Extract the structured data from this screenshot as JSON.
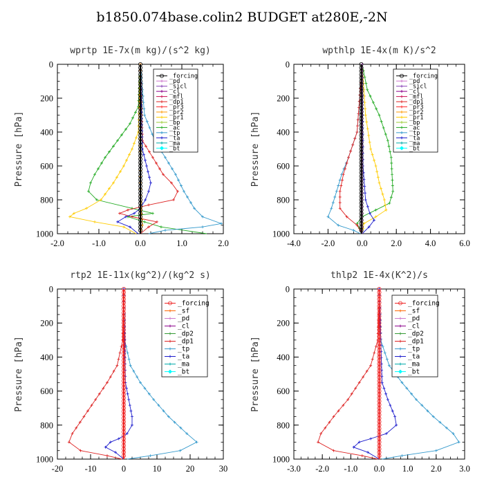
{
  "title": "b1850.074base.colin2  BUDGET at280E,-2N",
  "colors": {
    "_forcing": "#000000",
    "_pd": "#cc77cc",
    "_sicl": "#8a44b8",
    "_cl": "#8b008b",
    "_mfl": "#cc1155",
    "_dp1": "#dd2222",
    "_pr3": "#ff2a2a",
    "_pr2": "#ff9900",
    "_pr1": "#ffcc00",
    "_bp": "#99cc33",
    "_ac": "#22aa22",
    "_tp": "#3399cc",
    "_ta": "#1a1acc",
    "_ma": "#00aaaa",
    "_bt": "#00ffff",
    "_sf": "#ff6600",
    "_dp2": "#339933",
    "_forcing_red": "#ee2222"
  },
  "chart_data": [
    {
      "type": "line",
      "title": "wprtp  1E-7x(m kg)/(s^2 kg)",
      "ylabel": "Pressure [hPa]",
      "xlim": [
        -2.0,
        2.0
      ],
      "ylim": [
        1000,
        0
      ],
      "xticks": [
        "-2.0",
        "-1.0",
        "0.0",
        "1.0",
        "2.0"
      ],
      "xtick_values": [
        -2,
        -1,
        0,
        1,
        2
      ],
      "yticks": [
        "0",
        "200",
        "400",
        "600",
        "800",
        "1000"
      ],
      "ytick_values": [
        0,
        200,
        400,
        600,
        800,
        1000
      ],
      "legend": [
        "_forcing",
        "_pd",
        "_sicl",
        "_cl",
        "_mfl",
        "_dp1",
        "_pr3",
        "_pr2",
        "_pr1",
        "_bp",
        "_ac",
        "_tp",
        "_ta",
        "_ma",
        "_bt"
      ],
      "series": [
        {
          "name": "_ac",
          "p": [
            0,
            250,
            350,
            450,
            550,
            650,
            700,
            750,
            800,
            850,
            880,
            900,
            930,
            960,
            1000
          ],
          "x": [
            0.0,
            -0.05,
            -0.25,
            -0.55,
            -0.85,
            -1.1,
            -1.2,
            -1.25,
            -1.05,
            -0.2,
            0.3,
            -0.3,
            0.1,
            0.5,
            1.6
          ]
        },
        {
          "name": "_pr1",
          "p": [
            0,
            400,
            500,
            600,
            700,
            800,
            850,
            880,
            900,
            930,
            960,
            1000
          ],
          "x": [
            0.0,
            -0.05,
            -0.2,
            -0.4,
            -0.65,
            -0.95,
            -1.3,
            -1.6,
            -1.7,
            -1.1,
            -0.4,
            -0.1
          ]
        },
        {
          "name": "_tp",
          "p": [
            0,
            300,
            450,
            550,
            650,
            750,
            850,
            900,
            940,
            960,
            980,
            1000
          ],
          "x": [
            0.0,
            0.1,
            0.35,
            0.6,
            0.85,
            1.05,
            1.3,
            1.5,
            1.95,
            1.5,
            0.6,
            0.2
          ]
        },
        {
          "name": "_dp1",
          "p": [
            0,
            450,
            550,
            650,
            700,
            750,
            800,
            830,
            860,
            880,
            900,
            930,
            960,
            1000
          ],
          "x": [
            0.0,
            0.05,
            0.3,
            0.55,
            0.75,
            0.9,
            0.8,
            0.2,
            -0.3,
            -0.5,
            -0.2,
            0.4,
            0.2,
            0.0
          ]
        },
        {
          "name": "_ta",
          "p": [
            0,
            500,
            600,
            700,
            750,
            800,
            850,
            880,
            900,
            930,
            960,
            1000
          ],
          "x": [
            0.0,
            0.05,
            0.15,
            0.25,
            0.2,
            0.12,
            0.0,
            -0.15,
            -0.35,
            -0.55,
            -0.25,
            -0.05
          ]
        },
        {
          "name": "_pr2",
          "p": [
            0,
            700,
            850,
            950,
            1000
          ],
          "x": [
            0.0,
            0.0,
            0.02,
            0.05,
            0.0
          ]
        },
        {
          "name": "_forcing",
          "p": [
            0,
            200,
            400,
            600,
            800,
            1000
          ],
          "x": [
            0.0,
            0.0,
            0.0,
            0.0,
            0.0,
            0.0
          ]
        }
      ]
    },
    {
      "type": "line",
      "title": "wpthlp  1E-4x(m K)/s^2",
      "ylabel": "Pressure [hPa]",
      "xlim": [
        -4.0,
        6.0
      ],
      "ylim": [
        1000,
        0
      ],
      "xticks": [
        "-4.0",
        "-2.0",
        "0.0",
        "2.0",
        "4.0",
        "6.0"
      ],
      "xtick_values": [
        -4,
        -2,
        0,
        2,
        4,
        6
      ],
      "yticks": [
        "0",
        "200",
        "400",
        "600",
        "800",
        "1000"
      ],
      "ytick_values": [
        0,
        200,
        400,
        600,
        800,
        1000
      ],
      "legend": [
        "_forcing",
        "_pd",
        "_sicl",
        "_cl",
        "_mfl",
        "_dp1",
        "_pr3",
        "_pr2",
        "_pr1",
        "_bp",
        "_ac",
        "_tp",
        "_ta",
        "_ma",
        "_bt"
      ],
      "series": [
        {
          "name": "_ac",
          "p": [
            0,
            150,
            300,
            450,
            550,
            650,
            750,
            820,
            860,
            900,
            940,
            1000
          ],
          "x": [
            0.0,
            0.3,
            1.0,
            1.5,
            1.7,
            1.75,
            1.8,
            1.6,
            0.8,
            0.0,
            -0.3,
            0.0
          ]
        },
        {
          "name": "_pr1",
          "p": [
            0,
            300,
            500,
            600,
            700,
            800,
            860,
            900,
            940,
            1000
          ],
          "x": [
            0.0,
            0.2,
            0.5,
            0.8,
            1.0,
            1.3,
            1.4,
            0.8,
            0.1,
            0.0
          ]
        },
        {
          "name": "_tp",
          "p": [
            0,
            400,
            550,
            650,
            750,
            850,
            900,
            950,
            980,
            1000
          ],
          "x": [
            0.0,
            -0.3,
            -0.8,
            -1.2,
            -1.5,
            -1.8,
            -2.0,
            -1.4,
            -0.5,
            -0.1
          ]
        },
        {
          "name": "_dp1",
          "p": [
            0,
            400,
            550,
            650,
            750,
            850,
            900,
            950,
            1000
          ],
          "x": [
            0.0,
            -0.3,
            -0.8,
            -1.1,
            -1.3,
            -1.3,
            -0.9,
            -0.3,
            0.0
          ]
        },
        {
          "name": "_ta",
          "p": [
            0,
            600,
            800,
            880,
            920,
            960,
            1000
          ],
          "x": [
            0.0,
            0.05,
            0.2,
            0.45,
            0.7,
            0.4,
            0.0
          ]
        },
        {
          "name": "_pd",
          "p": [
            0,
            200,
            400,
            600,
            800,
            1000
          ],
          "x": [
            0.0,
            0.0,
            0.0,
            0.0,
            0.0,
            0.0
          ]
        },
        {
          "name": "_forcing",
          "p": [
            0,
            200,
            400,
            600,
            800,
            1000
          ],
          "x": [
            -0.05,
            -0.05,
            -0.05,
            -0.05,
            -0.05,
            -0.05
          ]
        }
      ]
    },
    {
      "type": "line",
      "title": "rtp2  1E-11x(kg^2)/(kg^2 s)",
      "ylabel": "Pressure [hPa]",
      "xlim": [
        -20,
        30
      ],
      "ylim": [
        1000,
        0
      ],
      "xticks": [
        "-20",
        "-10",
        "0",
        "10",
        "20",
        "30"
      ],
      "xtick_values": [
        -20,
        -10,
        0,
        10,
        20,
        30
      ],
      "yticks": [
        "0",
        "200",
        "400",
        "600",
        "800",
        "1000"
      ],
      "ytick_values": [
        0,
        200,
        400,
        600,
        800,
        1000
      ],
      "legend": [
        "_forcing",
        "_sf",
        "_pd",
        "_cl",
        "_dp2",
        "_dp1",
        "_tp",
        "_ta",
        "_ma",
        "_bt"
      ],
      "series": [
        {
          "name": "_dp1",
          "p": [
            0,
            300,
            450,
            550,
            650,
            750,
            850,
            900,
            950,
            980,
            1000
          ],
          "x": [
            0.0,
            -0.3,
            -2.0,
            -5.0,
            -8.5,
            -12.0,
            -15.5,
            -16.5,
            -13.0,
            -5.0,
            -0.5
          ]
        },
        {
          "name": "_tp",
          "p": [
            0,
            300,
            450,
            550,
            650,
            750,
            850,
            900,
            950,
            980,
            1000
          ],
          "x": [
            0.0,
            0.3,
            2.0,
            5.0,
            9.0,
            13.5,
            19.0,
            22.0,
            17.0,
            8.0,
            1.0
          ]
        },
        {
          "name": "_ta",
          "p": [
            0,
            550,
            650,
            750,
            800,
            850,
            880,
            900,
            930,
            960,
            1000
          ],
          "x": [
            0.0,
            0.5,
            1.5,
            2.5,
            2.5,
            1.0,
            -1.5,
            -4.0,
            -5.5,
            -2.5,
            0.0
          ]
        },
        {
          "name": "_forcing_red",
          "p": [
            0,
            200,
            400,
            600,
            800,
            1000
          ],
          "x": [
            0.0,
            0.0,
            0.0,
            0.0,
            0.0,
            0.0
          ]
        }
      ]
    },
    {
      "type": "line",
      "title": "thlp2  1E-4x(K^2)/s",
      "ylabel": "Pressure [hPa]",
      "xlim": [
        -3.0,
        3.0
      ],
      "ylim": [
        1000,
        0
      ],
      "xticks": [
        "-3.0",
        "-2.0",
        "-1.0",
        "0.0",
        "1.0",
        "2.0",
        "3.0"
      ],
      "xtick_values": [
        -3,
        -2,
        -1,
        0,
        1,
        2,
        3
      ],
      "yticks": [
        "0",
        "200",
        "400",
        "600",
        "800",
        "1000"
      ],
      "ytick_values": [
        0,
        200,
        400,
        600,
        800,
        1000
      ],
      "legend": [
        "_forcing",
        "_sf",
        "_pd",
        "_cl",
        "_dp2",
        "_dp1",
        "_tp",
        "_ta",
        "_ma",
        "_bt"
      ],
      "series": [
        {
          "name": "_dp1",
          "p": [
            0,
            300,
            450,
            550,
            650,
            750,
            850,
            900,
            950,
            980,
            1000
          ],
          "x": [
            0.0,
            -0.05,
            -0.3,
            -0.7,
            -1.1,
            -1.6,
            -2.05,
            -2.15,
            -1.6,
            -0.6,
            -0.05
          ]
        },
        {
          "name": "_tp",
          "p": [
            0,
            300,
            450,
            550,
            650,
            750,
            850,
            900,
            950,
            980,
            1000
          ],
          "x": [
            0.0,
            0.05,
            0.35,
            0.8,
            1.3,
            1.9,
            2.6,
            2.8,
            2.0,
            0.8,
            0.1
          ]
        },
        {
          "name": "_ta",
          "p": [
            0,
            550,
            650,
            750,
            800,
            850,
            880,
            900,
            930,
            960,
            1000
          ],
          "x": [
            0.0,
            0.1,
            0.3,
            0.55,
            0.6,
            0.25,
            -0.3,
            -0.7,
            -0.9,
            -0.4,
            0.0
          ]
        },
        {
          "name": "_forcing_red",
          "p": [
            0,
            200,
            400,
            600,
            800,
            1000
          ],
          "x": [
            0.0,
            0.0,
            0.0,
            0.0,
            0.0,
            0.0
          ]
        }
      ]
    }
  ]
}
